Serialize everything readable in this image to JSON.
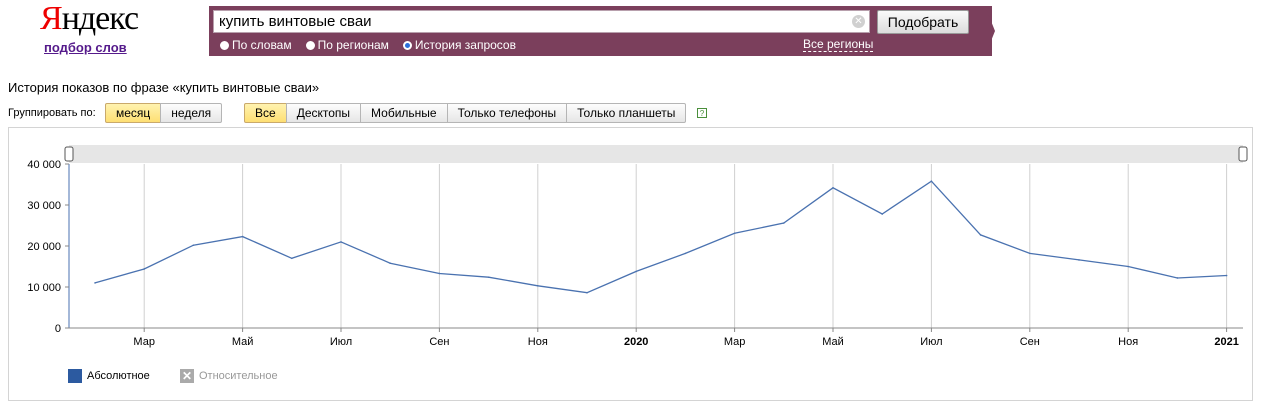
{
  "header": {
    "logo_first": "Я",
    "logo_rest": "ндекс",
    "sublink": "подбор слов",
    "search_value": "купить винтовые сваи",
    "search_button": "Подобрать",
    "radios": [
      {
        "label": "По словам",
        "selected": false
      },
      {
        "label": "По регионам",
        "selected": false
      },
      {
        "label": "История запросов",
        "selected": true
      }
    ],
    "regions_link": "Все регионы"
  },
  "history_title": "История показов по фразе «купить винтовые сваи»",
  "group_label": "Группировать по:",
  "period_buttons": [
    {
      "label": "месяц",
      "active": true
    },
    {
      "label": "неделя",
      "active": false
    }
  ],
  "device_buttons": [
    {
      "label": "Все",
      "active": true
    },
    {
      "label": "Десктопы",
      "active": false
    },
    {
      "label": "Мобильные",
      "active": false
    },
    {
      "label": "Только телефоны",
      "active": false
    },
    {
      "label": "Только планшеты",
      "active": false
    }
  ],
  "help_icon": "?",
  "chart_data": {
    "type": "line",
    "x": [
      "2019-02",
      "2019-03",
      "2019-04",
      "2019-05",
      "2019-06",
      "2019-07",
      "2019-08",
      "2019-09",
      "2019-10",
      "2019-11",
      "2019-12",
      "2020-01",
      "2020-02",
      "2020-03",
      "2020-04",
      "2020-05",
      "2020-06",
      "2020-07",
      "2020-08",
      "2020-09",
      "2020-10",
      "2020-11",
      "2020-12",
      "2021-01"
    ],
    "series": [
      {
        "values": [
          11000,
          14400,
          20200,
          22300,
          17000,
          21000,
          15800,
          13300,
          12400,
          10300,
          8600,
          13800,
          18200,
          23100,
          25600,
          34200,
          27800,
          35800,
          22700,
          18200,
          16600,
          15000,
          12200,
          12800
        ]
      }
    ],
    "x_ticks": [
      {
        "label": "Мар",
        "month": "2019-03",
        "bold": false
      },
      {
        "label": "Май",
        "month": "2019-05",
        "bold": false
      },
      {
        "label": "Июл",
        "month": "2019-07",
        "bold": false
      },
      {
        "label": "Сен",
        "month": "2019-09",
        "bold": false
      },
      {
        "label": "Ноя",
        "month": "2019-11",
        "bold": false
      },
      {
        "label": "2020",
        "month": "2020-01",
        "bold": true
      },
      {
        "label": "Мар",
        "month": "2020-03",
        "bold": false
      },
      {
        "label": "Май",
        "month": "2020-05",
        "bold": false
      },
      {
        "label": "Июл",
        "month": "2020-07",
        "bold": false
      },
      {
        "label": "Сен",
        "month": "2020-09",
        "bold": false
      },
      {
        "label": "Ноя",
        "month": "2020-11",
        "bold": false
      },
      {
        "label": "2021",
        "month": "2021-01",
        "bold": true
      }
    ],
    "y_ticks": [
      "0",
      "10 000",
      "20 000",
      "30 000",
      "40 000"
    ],
    "ylim": [
      0,
      40000
    ],
    "grid": "vertical",
    "line_color": "#4a72b0",
    "title": "",
    "xlabel": "",
    "ylabel": ""
  },
  "legend": {
    "absolute": "Абсолютное",
    "relative": "Относительное",
    "absolute_color": "#2c5aa0"
  }
}
